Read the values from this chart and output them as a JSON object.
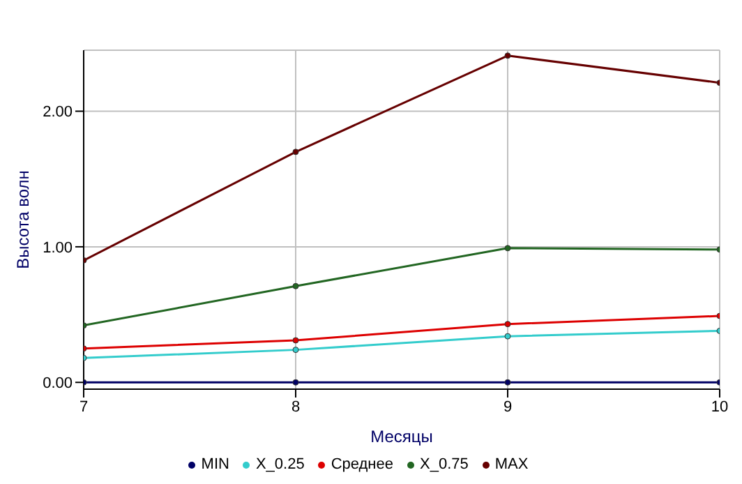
{
  "chart_data": {
    "type": "line",
    "xlabel": "Месяцы",
    "ylabel": "Высота волн",
    "x": [
      7,
      8,
      9,
      10
    ],
    "xlim": [
      7,
      10
    ],
    "xticks": [
      7,
      8,
      9,
      10
    ],
    "ylim": [
      -0.05,
      2.45
    ],
    "yticks": [
      {
        "value": 0,
        "label": "0.00"
      },
      {
        "value": 1,
        "label": "1.00"
      },
      {
        "value": 2,
        "label": "2.00"
      }
    ],
    "grid": true,
    "legend": "bottom",
    "marker": "circle",
    "line_style": "solid",
    "series": [
      {
        "name": "MIN",
        "color": "#000066",
        "values": [
          0,
          0,
          0,
          0
        ]
      },
      {
        "name": "X_0.25",
        "color": "#33cccc",
        "values": [
          0.18,
          0.24,
          0.34,
          0.38
        ]
      },
      {
        "name": "Среднее",
        "color": "#dd0000",
        "values": [
          0.25,
          0.31,
          0.43,
          0.49
        ]
      },
      {
        "name": "X_0.75",
        "color": "#226622",
        "values": [
          0.42,
          0.71,
          0.99,
          0.98
        ]
      },
      {
        "name": "MAX",
        "color": "#660000",
        "values": [
          0.9,
          1.7,
          2.41,
          2.21
        ]
      }
    ]
  }
}
